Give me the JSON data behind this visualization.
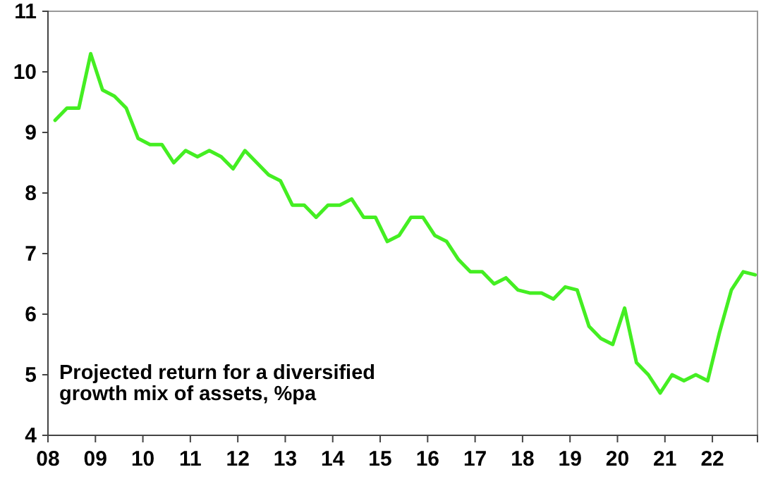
{
  "chart_data": {
    "type": "line",
    "annotations": [
      "Projected return for a diversified growth mix of assets, %pa"
    ],
    "x": [
      2008.15,
      2008.4,
      2008.65,
      2008.9,
      2009.15,
      2009.4,
      2009.65,
      2009.9,
      2010.15,
      2010.4,
      2010.65,
      2010.9,
      2011.15,
      2011.4,
      2011.65,
      2011.9,
      2012.15,
      2012.4,
      2012.65,
      2012.9,
      2013.15,
      2013.4,
      2013.65,
      2013.9,
      2014.15,
      2014.4,
      2014.65,
      2014.9,
      2015.15,
      2015.4,
      2015.65,
      2015.9,
      2016.15,
      2016.4,
      2016.65,
      2016.9,
      2017.15,
      2017.4,
      2017.65,
      2017.9,
      2018.15,
      2018.4,
      2018.65,
      2018.9,
      2019.15,
      2019.4,
      2019.65,
      2019.9,
      2020.15,
      2020.4,
      2020.65,
      2020.9,
      2021.15,
      2021.4,
      2021.65,
      2021.9,
      2022.15,
      2022.4,
      2022.65,
      2022.9
    ],
    "series": [
      {
        "color": "#44ee22",
        "values": [
          9.2,
          9.4,
          9.4,
          10.3,
          9.7,
          9.6,
          9.4,
          8.9,
          8.8,
          8.8,
          8.5,
          8.7,
          8.6,
          8.7,
          8.6,
          8.4,
          8.7,
          8.5,
          8.3,
          8.2,
          7.8,
          7.8,
          7.6,
          7.8,
          7.8,
          7.9,
          7.6,
          7.6,
          7.2,
          7.3,
          7.6,
          7.6,
          7.3,
          7.2,
          6.9,
          6.7,
          6.7,
          6.5,
          6.6,
          6.4,
          6.35,
          6.35,
          6.25,
          6.45,
          6.4,
          5.8,
          5.6,
          5.5,
          6.1,
          5.2,
          5.0,
          4.7,
          5.0,
          4.9,
          5.0,
          4.9,
          5.7,
          6.4,
          6.7,
          6.65
        ]
      }
    ],
    "xlim": [
      2008,
      2022.95
    ],
    "xticks": [
      {
        "value": 2008,
        "label": "08"
      },
      {
        "value": 2009,
        "label": "09"
      },
      {
        "value": 2010,
        "label": "10"
      },
      {
        "value": 2011,
        "label": "11"
      },
      {
        "value": 2012,
        "label": "12"
      },
      {
        "value": 2013,
        "label": "13"
      },
      {
        "value": 2014,
        "label": "14"
      },
      {
        "value": 2015,
        "label": "15"
      },
      {
        "value": 2016,
        "label": "16"
      },
      {
        "value": 2017,
        "label": "17"
      },
      {
        "value": 2018,
        "label": "18"
      },
      {
        "value": 2019,
        "label": "19"
      },
      {
        "value": 2020,
        "label": "20"
      },
      {
        "value": 2021,
        "label": "21"
      },
      {
        "value": 2022,
        "label": "22"
      }
    ],
    "ylim": [
      4,
      11
    ],
    "yticks": [
      4,
      5,
      6,
      7,
      8,
      9,
      10,
      11
    ],
    "grid": false,
    "marker": "none",
    "line_style": "solid"
  }
}
